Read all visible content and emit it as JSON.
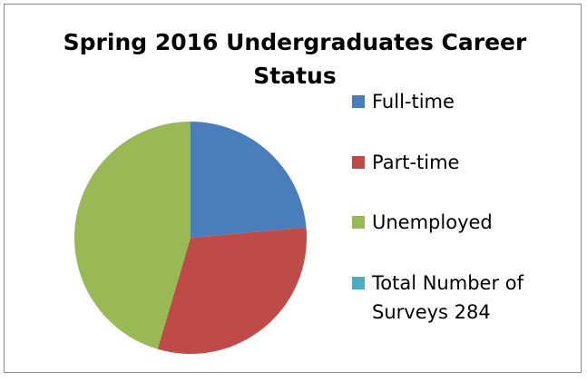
{
  "chart_data": {
    "type": "pie",
    "title": "Spring 2016 Undergraduates Career Status",
    "categories": [
      "Full-time",
      "Part-time",
      "Unemployed",
      "Total Number of Surveys 284"
    ],
    "values": [
      67,
      88,
      129,
      0
    ],
    "colors": [
      "#4a7ebb",
      "#be4b48",
      "#98b954",
      "#4bacc6"
    ]
  }
}
